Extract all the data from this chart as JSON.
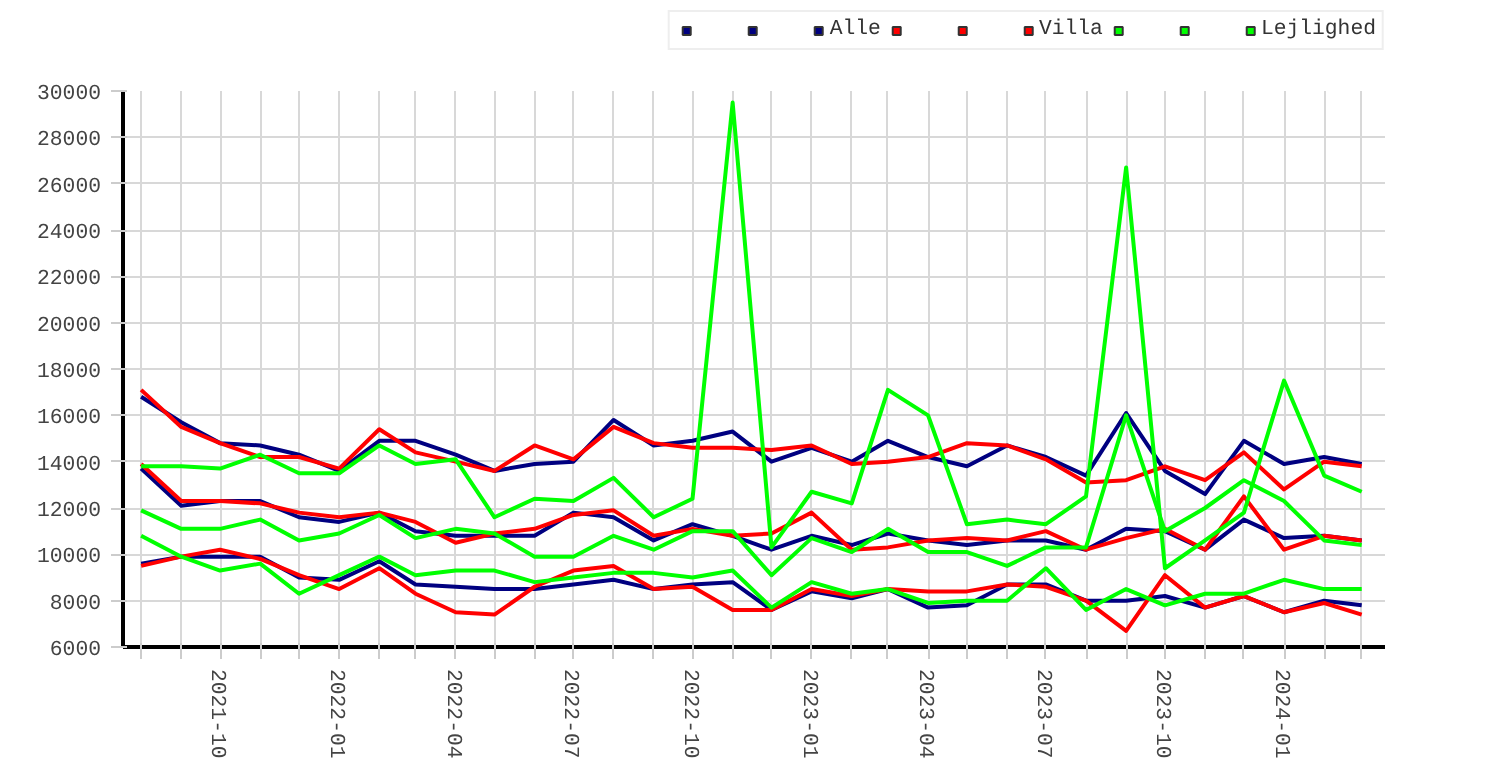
{
  "chart_data": {
    "type": "line",
    "x": [
      "2021-08",
      "2021-09",
      "2021-10",
      "2021-11",
      "2021-12",
      "2022-01",
      "2022-02",
      "2022-03",
      "2022-04",
      "2022-05",
      "2022-06",
      "2022-07",
      "2022-08",
      "2022-09",
      "2022-10",
      "2022-11",
      "2022-12",
      "2023-01",
      "2023-02",
      "2023-03",
      "2023-04",
      "2023-05",
      "2023-06",
      "2023-07",
      "2023-08",
      "2023-09",
      "2023-10",
      "2023-11",
      "2023-12",
      "2024-01",
      "2024-02",
      "2024-03"
    ],
    "series": [
      {
        "color": "#000080",
        "values": [
          16800,
          15700,
          14800,
          14700,
          14300,
          13600,
          14900,
          14900,
          14300,
          13600,
          13900,
          14000,
          15800,
          14700,
          14900,
          15300,
          14000,
          14600,
          14000,
          14900,
          14200,
          13800,
          14700,
          14200,
          13400,
          16100,
          13600,
          12600,
          14900,
          13900,
          14200,
          13900
        ]
      },
      {
        "color": "#000080",
        "values": [
          13700,
          12100,
          12300,
          12300,
          11600,
          11400,
          11800,
          11000,
          10800,
          10800,
          10800,
          11800,
          11600,
          10600,
          11300,
          10800,
          10200,
          10800,
          10400,
          10900,
          10600,
          10400,
          10600,
          10600,
          10200,
          11100,
          11000,
          10200,
          11500,
          10700,
          10800,
          10600
        ]
      },
      {
        "name": "Alle",
        "color": "#000080",
        "values": [
          9600,
          9900,
          9900,
          9900,
          9000,
          8900,
          9700,
          8700,
          8600,
          8500,
          8500,
          8700,
          8900,
          8500,
          8700,
          8800,
          7600,
          8400,
          8100,
          8500,
          7700,
          7800,
          8700,
          8700,
          8000,
          8000,
          8200,
          7700,
          8200,
          7500,
          8000,
          7800
        ]
      },
      {
        "color": "#ff0000",
        "values": [
          17100,
          15500,
          14800,
          14200,
          14200,
          13700,
          15400,
          14400,
          14000,
          13600,
          14700,
          14100,
          15500,
          14800,
          14600,
          14600,
          14500,
          14700,
          13900,
          14000,
          14200,
          14800,
          14700,
          14100,
          13100,
          13200,
          13800,
          13200,
          14400,
          12800,
          14000,
          13800
        ]
      },
      {
        "color": "#ff0000",
        "values": [
          13900,
          12300,
          12300,
          12200,
          11800,
          11600,
          11800,
          11400,
          10500,
          10900,
          11100,
          11700,
          11900,
          10800,
          11100,
          10800,
          10900,
          11800,
          10200,
          10300,
          10600,
          10700,
          10600,
          11000,
          10200,
          10700,
          11100,
          10200,
          12500,
          10200,
          10800,
          10600
        ]
      },
      {
        "name": "Villa",
        "color": "#ff0000",
        "values": [
          9500,
          9900,
          10200,
          9800,
          9100,
          8500,
          9400,
          8300,
          7500,
          7400,
          8600,
          9300,
          9500,
          8500,
          8600,
          7600,
          7600,
          8500,
          8200,
          8500,
          8400,
          8400,
          8700,
          8600,
          8000,
          6700,
          9100,
          7700,
          8200,
          7500,
          7900,
          7400
        ]
      },
      {
        "color": "#00ff00",
        "values": [
          13800,
          13800,
          13700,
          14300,
          13500,
          13500,
          14700,
          13900,
          14100,
          11600,
          12400,
          12300,
          13300,
          11600,
          12400,
          29500,
          10300,
          12700,
          12200,
          17100,
          16000,
          11300,
          11500,
          11300,
          12500,
          26700,
          9400,
          10600,
          11800,
          17500,
          13400,
          12700
        ]
      },
      {
        "color": "#00ff00",
        "values": [
          11900,
          11100,
          11100,
          11500,
          10600,
          10900,
          11700,
          10700,
          11100,
          10900,
          9900,
          9900,
          10800,
          10200,
          11000,
          11000,
          9100,
          10700,
          10100,
          11100,
          10100,
          10100,
          9500,
          10300,
          10300,
          16000,
          11000,
          12000,
          13200,
          12300,
          10600,
          10400
        ]
      },
      {
        "name": "Lejlighed",
        "color": "#00ff00",
        "values": [
          10800,
          9900,
          9300,
          9600,
          8300,
          9100,
          9900,
          9100,
          9300,
          9300,
          8800,
          9000,
          9200,
          9200,
          9000,
          9300,
          7700,
          8800,
          8300,
          8500,
          7900,
          8000,
          8000,
          9400,
          7600,
          8500,
          7800,
          8300,
          8300,
          8900,
          8500,
          8500
        ]
      }
    ],
    "xlim": [
      "2021-07-18",
      "2024-03-19"
    ],
    "xticks": [
      {
        "value": "2021-08",
        "label": null
      },
      {
        "value": "2021-09",
        "label": null
      },
      {
        "value": "2021-10",
        "label": "2021-10"
      },
      {
        "value": "2021-11",
        "label": null
      },
      {
        "value": "2021-12",
        "label": null
      },
      {
        "value": "2022-01",
        "label": "2022-01"
      },
      {
        "value": "2022-02",
        "label": null
      },
      {
        "value": "2022-03",
        "label": null
      },
      {
        "value": "2022-04",
        "label": "2022-04"
      },
      {
        "value": "2022-05",
        "label": null
      },
      {
        "value": "2022-06",
        "label": null
      },
      {
        "value": "2022-07",
        "label": "2022-07"
      },
      {
        "value": "2022-08",
        "label": null
      },
      {
        "value": "2022-09",
        "label": null
      },
      {
        "value": "2022-10",
        "label": "2022-10"
      },
      {
        "value": "2022-11",
        "label": null
      },
      {
        "value": "2022-12",
        "label": null
      },
      {
        "value": "2023-01",
        "label": "2023-01"
      },
      {
        "value": "2023-02",
        "label": null
      },
      {
        "value": "2023-03",
        "label": null
      },
      {
        "value": "2023-04",
        "label": "2023-04"
      },
      {
        "value": "2023-05",
        "label": null
      },
      {
        "value": "2023-06",
        "label": null
      },
      {
        "value": "2023-07",
        "label": "2023-07"
      },
      {
        "value": "2023-08",
        "label": null
      },
      {
        "value": "2023-09",
        "label": null
      },
      {
        "value": "2023-10",
        "label": "2023-10"
      },
      {
        "value": "2023-11",
        "label": null
      },
      {
        "value": "2023-12",
        "label": null
      },
      {
        "value": "2024-01",
        "label": "2024-01"
      },
      {
        "value": "2024-02",
        "label": null
      },
      {
        "value": "2024-03",
        "label": null
      }
    ],
    "ylim": [
      6000,
      30000
    ],
    "yticks": [
      6000,
      8000,
      10000,
      12000,
      14000,
      16000,
      18000,
      20000,
      22000,
      24000,
      26000,
      28000,
      30000
    ],
    "grid": true,
    "legend": "top right",
    "marker": "none",
    "line_style": "solid"
  }
}
